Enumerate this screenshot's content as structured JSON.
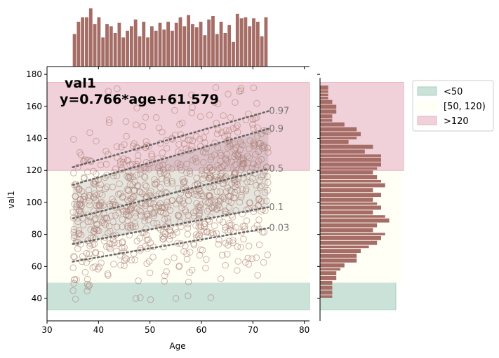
{
  "chart_data": {
    "type": "scatter",
    "title": "val1",
    "annotation": "y=0.766*age+61.579",
    "xlabel": "Age",
    "ylabel": "val1",
    "xlim": [
      30,
      81
    ],
    "ylim": [
      26,
      184
    ],
    "xticks": [
      30,
      40,
      50,
      60,
      70,
      80
    ],
    "yticks": [
      40,
      60,
      80,
      100,
      120,
      140,
      160,
      180
    ],
    "grid": false,
    "legend_position": "outside-top-right",
    "regression": {
      "slope": 0.766,
      "intercept": 61.579
    },
    "bands": [
      {
        "name": "<50",
        "ymin": 33,
        "ymax": 50,
        "color": "#a9cfc0"
      },
      {
        "name": "[50, 120)",
        "ymin": 50,
        "ymax": 120,
        "color": "#fffff0"
      },
      {
        "name": ">120",
        "ymin": 120,
        "ymax": 175,
        "color": "#e8b3c0"
      }
    ],
    "band_range_x": [
      30,
      81
    ],
    "quantiles": [
      {
        "label": "0.97",
        "offset": 27,
        "y_start": 122,
        "y_end": 157
      },
      {
        "label": "0.9",
        "offset": 18,
        "y_start": 111,
        "y_end": 146
      },
      {
        "label": "0.5",
        "offset": 0,
        "y_start": 90,
        "y_end": 121
      },
      {
        "label": "0.1",
        "offset": -15,
        "y_start": 74,
        "y_end": 97
      },
      {
        "label": "0.03",
        "offset": -24,
        "y_start": 63,
        "y_end": 84
      }
    ],
    "quantile_x_range": [
      35,
      73
    ],
    "scatter_x_range": [
      35,
      73
    ],
    "scatter_count": 900,
    "scatter_color": "#a97c73",
    "hist_color": "#a56d65",
    "x_hist": [
      29,
      40,
      44,
      44,
      52,
      38,
      44,
      26,
      38,
      36,
      30,
      39,
      26,
      32,
      36,
      42,
      27,
      40,
      26,
      36,
      32,
      39,
      33,
      40,
      32,
      39,
      44,
      36,
      46,
      38,
      35,
      40,
      28,
      42,
      45,
      29,
      40,
      30,
      37,
      22,
      47,
      43,
      44,
      36,
      43,
      40,
      27,
      44
    ],
    "y_hist": [
      [
        173,
        170,
        2
      ],
      [
        170,
        168,
        2
      ],
      [
        168,
        166,
        2
      ],
      [
        166,
        164,
        2
      ],
      [
        164,
        161,
        3
      ],
      [
        161,
        158,
        4
      ],
      [
        158,
        155,
        4
      ],
      [
        155,
        152,
        3
      ],
      [
        152,
        150,
        3
      ],
      [
        150,
        147,
        6
      ],
      [
        147,
        144,
        9
      ],
      [
        144,
        141,
        10
      ],
      [
        141,
        139,
        9
      ],
      [
        139,
        136,
        7
      ],
      [
        136,
        133,
        13
      ],
      [
        133,
        130,
        11
      ],
      [
        130,
        128,
        15
      ],
      [
        128,
        125,
        15
      ],
      [
        125,
        122,
        15
      ],
      [
        122,
        120,
        14
      ],
      [
        120,
        117,
        13
      ],
      [
        117,
        114,
        14
      ],
      [
        114,
        112,
        15
      ],
      [
        112,
        109,
        16
      ],
      [
        109,
        106,
        13
      ],
      [
        106,
        103,
        15
      ],
      [
        103,
        100,
        13
      ],
      [
        100,
        98,
        14
      ],
      [
        98,
        95,
        15
      ],
      [
        95,
        92,
        13
      ],
      [
        92,
        90,
        16
      ],
      [
        90,
        87,
        17
      ],
      [
        87,
        84,
        14
      ],
      [
        84,
        81,
        13
      ],
      [
        81,
        79,
        16
      ],
      [
        79,
        76,
        15
      ],
      [
        76,
        73,
        14
      ],
      [
        73,
        71,
        12
      ],
      [
        71,
        68,
        10
      ],
      [
        68,
        65,
        9
      ],
      [
        65,
        62,
        9
      ],
      [
        62,
        59,
        6
      ],
      [
        59,
        57,
        5
      ],
      [
        57,
        54,
        4
      ],
      [
        54,
        51,
        4
      ],
      [
        51,
        48,
        3
      ],
      [
        48,
        45,
        3
      ],
      [
        45,
        42,
        3
      ],
      [
        42,
        40,
        3
      ]
    ]
  }
}
